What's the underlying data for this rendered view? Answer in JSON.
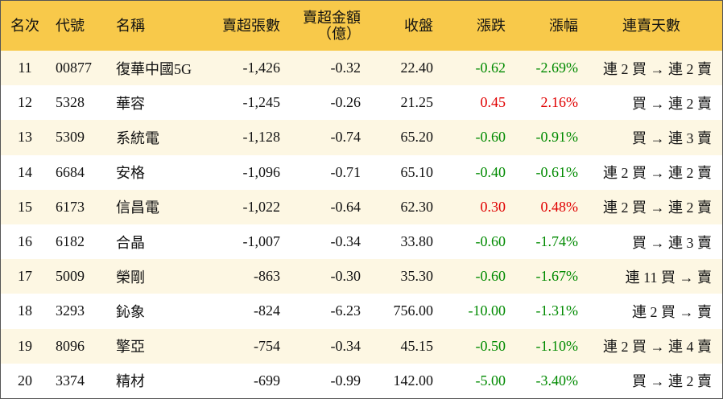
{
  "table": {
    "header": [
      "名次",
      "代號",
      "名稱",
      "賣超張數",
      "賣超金額\n（億）",
      "收盤",
      "漲跌",
      "漲幅",
      "連賣天數"
    ],
    "rows": [
      [
        "11",
        "00877",
        "復華中國5G",
        "-1,426",
        "-0.32",
        "22.40",
        "-0.62",
        "-2.69%",
        "連 2 買 → 連 2 賣"
      ],
      [
        "12",
        "5328",
        "華容",
        "-1,245",
        "-0.26",
        "21.25",
        "0.45",
        "2.16%",
        "買 → 連 2 賣"
      ],
      [
        "13",
        "5309",
        "系統電",
        "-1,128",
        "-0.74",
        "65.20",
        "-0.60",
        "-0.91%",
        "買 → 連 3 賣"
      ],
      [
        "14",
        "6684",
        "安格",
        "-1,096",
        "-0.71",
        "65.10",
        "-0.40",
        "-0.61%",
        "連 2 買 → 連 2 賣"
      ],
      [
        "15",
        "6173",
        "信昌電",
        "-1,022",
        "-0.64",
        "62.30",
        "0.30",
        "0.48%",
        "連 2 買 → 連 2 賣"
      ],
      [
        "16",
        "6182",
        "合晶",
        "-1,007",
        "-0.34",
        "33.80",
        "-0.60",
        "-1.74%",
        "買 → 連 3 賣"
      ],
      [
        "17",
        "5009",
        "榮剛",
        "-863",
        "-0.30",
        "35.30",
        "-0.60",
        "-1.67%",
        "連 11 買 → 賣"
      ],
      [
        "18",
        "3293",
        "鈊象",
        "-824",
        "-6.23",
        "756.00",
        "-10.00",
        "-1.31%",
        "連 2 買 → 賣"
      ],
      [
        "19",
        "8096",
        "擎亞",
        "-754",
        "-0.34",
        "45.15",
        "-0.50",
        "-1.10%",
        "連 2 買 → 連 4 賣"
      ],
      [
        "20",
        "3374",
        "精材",
        "-699",
        "-0.99",
        "142.00",
        "-5.00",
        "-3.40%",
        "買 → 連 2 賣"
      ]
    ],
    "colors": {
      "up": "#e00000",
      "down": "#008a00"
    }
  }
}
